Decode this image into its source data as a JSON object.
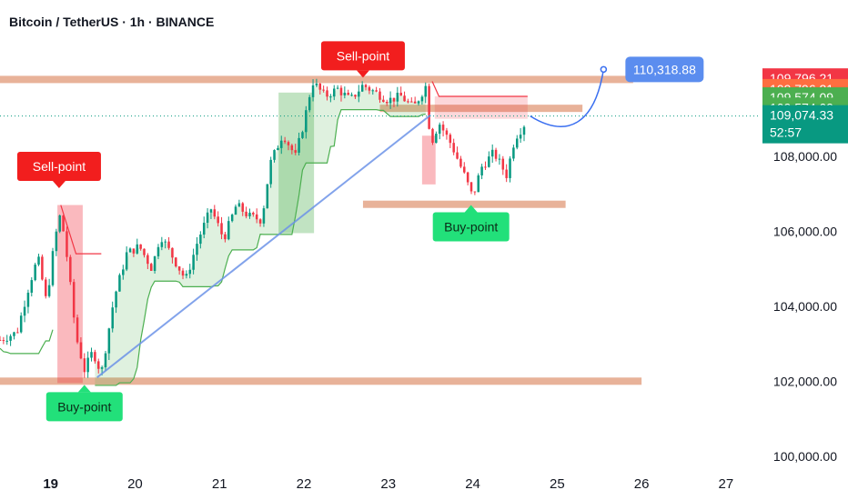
{
  "header": {
    "title": "Bitcoin / TetherUS · 1h · BINANCE"
  },
  "chart_data": {
    "type": "candlestick",
    "symbol": "Bitcoin / TetherUS",
    "interval": "1h",
    "exchange": "BINANCE",
    "x_axis": {
      "labels": [
        "19",
        "20",
        "21",
        "22",
        "23",
        "24",
        "25",
        "26",
        "27"
      ],
      "range_days": [
        18.4,
        27.4
      ]
    },
    "y_axis": {
      "tick_labels": [
        "100,000.00",
        "102,000.00",
        "104,000.00",
        "106,000.00",
        "108,000.00",
        "110,000.00"
      ],
      "ticks": [
        100000,
        102000,
        104000,
        106000,
        108000,
        110000
      ],
      "range": [
        99800,
        111200
      ]
    },
    "price_tags": [
      {
        "label": "109,796.21",
        "value": 110080,
        "color": "#f23645"
      },
      {
        "label": "109,796.21",
        "value": 109796,
        "color": "#ff6e40"
      },
      {
        "label": "109,574.09",
        "value": 109574,
        "color": "#4caf50"
      },
      {
        "label": "109,574.09",
        "value": 109300,
        "color": "#4caf50"
      },
      {
        "label": "109,074.33",
        "sublabel": "52:57",
        "value": 109074,
        "color": "#089981"
      }
    ],
    "current_price": 109074.33,
    "forecast_target": {
      "label": "110,318.88",
      "value": 110318.88,
      "day": 25.55,
      "color": "#5b8def"
    },
    "annotations": [
      {
        "text": "Sell-point",
        "type": "sell",
        "day": 19.1,
        "price": 107150
      },
      {
        "text": "Buy-point",
        "type": "buy",
        "day": 19.4,
        "price": 101900
      },
      {
        "text": "Sell-point",
        "type": "sell",
        "day": 22.7,
        "price": 110100
      },
      {
        "text": "Buy-point",
        "type": "buy",
        "day": 23.98,
        "price": 106700
      }
    ],
    "horizontal_levels": [
      {
        "price": 110050,
        "from": 18.4,
        "to": 25.9
      },
      {
        "price": 109280,
        "from": 22.9,
        "to": 25.3
      },
      {
        "price": 106720,
        "from": 22.7,
        "to": 25.1
      },
      {
        "price": 102000,
        "from": 18.4,
        "to": 26.0
      }
    ],
    "trendline": [
      [
        19.55,
        102100
      ],
      [
        23.5,
        109100
      ]
    ],
    "zones": [
      {
        "type": "sell",
        "day_from": 19.08,
        "day_to": 19.38,
        "price_from": 101950,
        "price_to": 106700
      },
      {
        "type": "buy",
        "day_from": 21.7,
        "day_to": 22.12,
        "price_from": 105950,
        "price_to": 109700
      },
      {
        "type": "sell",
        "day_from": 23.4,
        "day_to": 23.56,
        "price_from": 107250,
        "price_to": 108550
      }
    ]
  }
}
